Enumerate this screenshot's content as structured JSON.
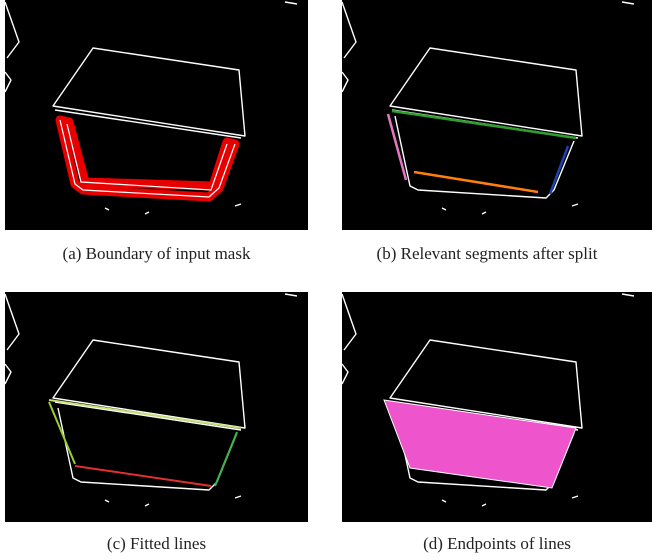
{
  "panels": [
    {
      "caption": "(a) Boundary of input mask"
    },
    {
      "caption": "(b) Relevant segments after split"
    },
    {
      "caption": "(c) Fitted lines"
    },
    {
      "caption": "(d) Endpoints of lines"
    }
  ]
}
